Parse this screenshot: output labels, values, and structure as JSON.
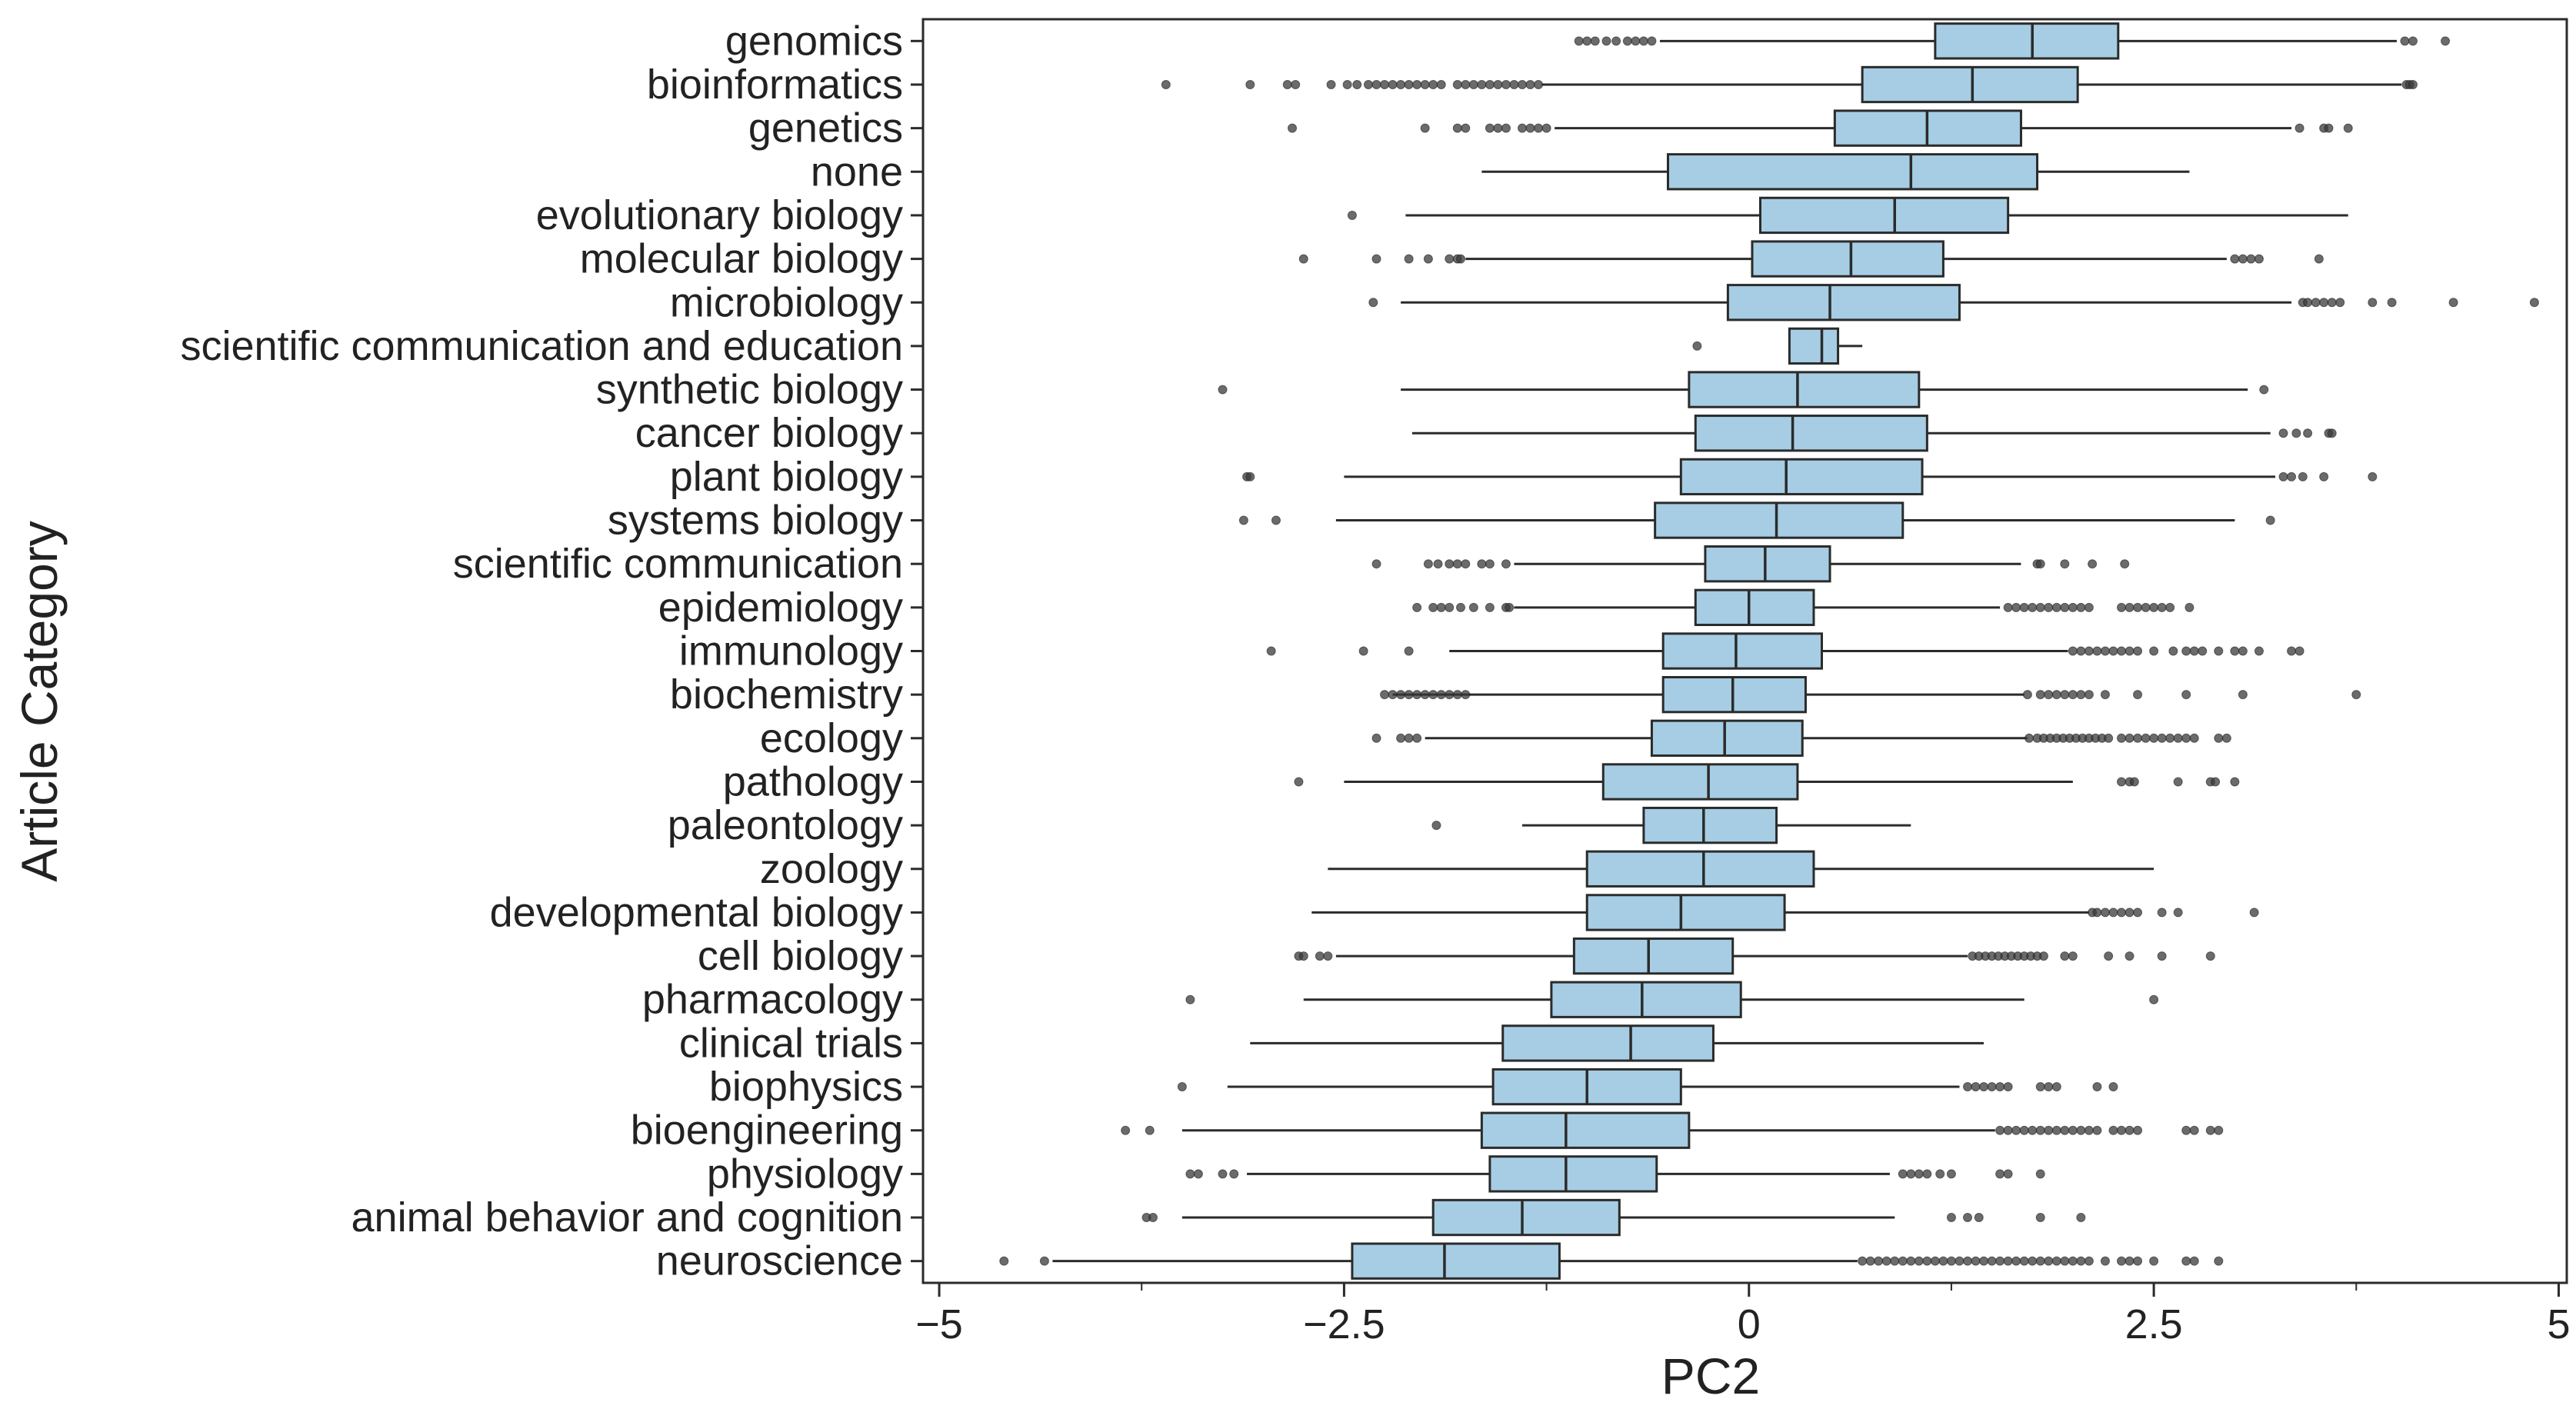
{
  "chart_data": {
    "type": "box",
    "orientation": "horizontal",
    "xlabel": "PC2",
    "ylabel": "Article Category",
    "xlim": [
      -5.1,
      5.05
    ],
    "x_ticks": [
      -5,
      -2.5,
      0,
      2.5,
      5
    ],
    "x_tick_labels": [
      "−5",
      "−2.5",
      "0",
      "2.5",
      "5"
    ],
    "box_color": "#a6cde3",
    "line_color": "#2b2b2b",
    "flier_color": "#3a3a3a",
    "categories": [
      {
        "name": "genomics",
        "whisker_low": -0.55,
        "q1": 1.15,
        "median": 1.75,
        "q3": 2.28,
        "whisker_high": 4.0,
        "outliers": [
          -1.05,
          -1.0,
          -0.95,
          -0.88,
          -0.82,
          -0.75,
          -0.7,
          -0.65,
          -0.6,
          4.05,
          4.1,
          4.3
        ]
      },
      {
        "name": "bioinformatics",
        "whisker_low": -1.28,
        "q1": 0.7,
        "median": 1.38,
        "q3": 2.03,
        "whisker_high": 4.03,
        "outliers": [
          -3.6,
          -3.08,
          -2.85,
          -2.8,
          -2.58,
          -2.48,
          -2.42,
          -2.35,
          -2.3,
          -2.25,
          -2.2,
          -2.15,
          -2.1,
          -2.05,
          -2.0,
          -1.95,
          -1.9,
          -1.8,
          -1.75,
          -1.7,
          -1.65,
          -1.6,
          -1.55,
          -1.5,
          -1.45,
          -1.4,
          -1.35,
          -1.3,
          4.06,
          4.08,
          4.1
        ]
      },
      {
        "name": "genetics",
        "whisker_low": -1.2,
        "q1": 0.53,
        "median": 1.1,
        "q3": 1.68,
        "whisker_high": 3.35,
        "outliers": [
          -2.82,
          -2.0,
          -1.8,
          -1.75,
          -1.6,
          -1.55,
          -1.5,
          -1.4,
          -1.35,
          -1.3,
          -1.25,
          3.4,
          3.55,
          3.58,
          3.7
        ]
      },
      {
        "name": "none",
        "whisker_low": -1.65,
        "q1": -0.5,
        "median": 1.0,
        "q3": 1.78,
        "whisker_high": 2.72,
        "outliers": []
      },
      {
        "name": "evolutionary biology",
        "whisker_low": -2.12,
        "q1": 0.07,
        "median": 0.9,
        "q3": 1.6,
        "whisker_high": 3.7,
        "outliers": [
          -2.45
        ]
      },
      {
        "name": "molecular biology",
        "whisker_low": -1.75,
        "q1": 0.02,
        "median": 0.63,
        "q3": 1.2,
        "whisker_high": 2.95,
        "outliers": [
          -2.75,
          -2.3,
          -2.1,
          -1.98,
          -1.85,
          -1.8,
          -1.78,
          3.0,
          3.05,
          3.1,
          3.15,
          3.52
        ]
      },
      {
        "name": "microbiology",
        "whisker_low": -2.15,
        "q1": -0.13,
        "median": 0.5,
        "q3": 1.3,
        "whisker_high": 3.35,
        "outliers": [
          -2.32,
          3.42,
          3.45,
          3.5,
          3.55,
          3.6,
          3.65,
          3.85,
          3.97,
          4.35,
          4.85
        ]
      },
      {
        "name": "scientific communication and education",
        "whisker_low": 0.25,
        "q1": 0.25,
        "median": 0.45,
        "q3": 0.55,
        "whisker_high": 0.7,
        "outliers": [
          -0.32
        ]
      },
      {
        "name": "synthetic biology",
        "whisker_low": -2.15,
        "q1": -0.37,
        "median": 0.3,
        "q3": 1.05,
        "whisker_high": 3.08,
        "outliers": [
          -3.25,
          3.18
        ]
      },
      {
        "name": "cancer biology",
        "whisker_low": -2.08,
        "q1": -0.33,
        "median": 0.27,
        "q3": 1.1,
        "whisker_high": 3.22,
        "outliers": [
          3.3,
          3.38,
          3.45,
          3.58,
          3.6
        ]
      },
      {
        "name": "plant biology",
        "whisker_low": -2.5,
        "q1": -0.42,
        "median": 0.23,
        "q3": 1.07,
        "whisker_high": 3.25,
        "outliers": [
          -3.1,
          -3.08,
          3.3,
          3.35,
          3.42,
          3.55,
          3.85
        ]
      },
      {
        "name": "systems biology",
        "whisker_low": -2.55,
        "q1": -0.58,
        "median": 0.17,
        "q3": 0.95,
        "whisker_high": 3.0,
        "outliers": [
          -3.12,
          -2.92,
          3.22
        ]
      },
      {
        "name": "scientific communication",
        "whisker_low": -1.45,
        "q1": -0.27,
        "median": 0.1,
        "q3": 0.5,
        "whisker_high": 1.68,
        "outliers": [
          -2.3,
          -1.98,
          -1.92,
          -1.85,
          -1.8,
          -1.75,
          -1.65,
          -1.6,
          -1.5,
          1.78,
          1.8,
          1.95,
          2.12,
          2.32
        ]
      },
      {
        "name": "epidemiology",
        "whisker_low": -1.45,
        "q1": -0.33,
        "median": 0.0,
        "q3": 0.4,
        "whisker_high": 1.55,
        "outliers": [
          -2.05,
          -1.95,
          -1.9,
          -1.85,
          -1.78,
          -1.7,
          -1.6,
          -1.5,
          -1.48,
          1.6,
          1.65,
          1.7,
          1.75,
          1.8,
          1.85,
          1.9,
          1.95,
          2.0,
          2.05,
          2.1,
          2.3,
          2.35,
          2.4,
          2.45,
          2.5,
          2.55,
          2.6,
          2.72
        ]
      },
      {
        "name": "immunology",
        "whisker_low": -1.85,
        "q1": -0.53,
        "median": -0.08,
        "q3": 0.45,
        "whisker_high": 1.97,
        "outliers": [
          -2.95,
          -2.38,
          -2.1,
          2.0,
          2.05,
          2.1,
          2.15,
          2.2,
          2.25,
          2.3,
          2.35,
          2.4,
          2.5,
          2.62,
          2.7,
          2.75,
          2.8,
          2.9,
          3.0,
          3.05,
          3.15,
          3.35,
          3.4
        ]
      },
      {
        "name": "biochemistry",
        "whisker_low": -2.2,
        "q1": -0.53,
        "median": -0.1,
        "q3": 0.35,
        "whisker_high": 1.7,
        "outliers": [
          -2.25,
          -2.2,
          -2.15,
          -2.1,
          -2.05,
          -2.0,
          -1.95,
          -1.9,
          -1.85,
          -1.8,
          -1.75,
          1.72,
          1.8,
          1.85,
          1.9,
          1.95,
          2.0,
          2.05,
          2.1,
          2.2,
          2.4,
          2.7,
          3.05,
          3.75
        ]
      },
      {
        "name": "ecology",
        "whisker_low": -2.0,
        "q1": -0.6,
        "median": -0.15,
        "q3": 0.33,
        "whisker_high": 1.72,
        "outliers": [
          -2.3,
          -2.15,
          -2.1,
          -2.05,
          1.73,
          1.78,
          1.82,
          1.86,
          1.9,
          1.94,
          1.98,
          2.02,
          2.06,
          2.1,
          2.14,
          2.18,
          2.22,
          2.3,
          2.35,
          2.4,
          2.45,
          2.5,
          2.55,
          2.6,
          2.65,
          2.7,
          2.75,
          2.9,
          2.95
        ]
      },
      {
        "name": "pathology",
        "whisker_low": -2.5,
        "q1": -0.9,
        "median": -0.25,
        "q3": 0.3,
        "whisker_high": 2.0,
        "outliers": [
          -2.78,
          2.3,
          2.35,
          2.38,
          2.65,
          2.85,
          2.88,
          3.0
        ]
      },
      {
        "name": "paleontology",
        "whisker_low": -1.4,
        "q1": -0.65,
        "median": -0.28,
        "q3": 0.17,
        "whisker_high": 1.0,
        "outliers": [
          -1.93
        ]
      },
      {
        "name": "zoology",
        "whisker_low": -2.6,
        "q1": -1.0,
        "median": -0.28,
        "q3": 0.4,
        "whisker_high": 2.5,
        "outliers": []
      },
      {
        "name": "developmental biology",
        "whisker_low": -2.7,
        "q1": -1.0,
        "median": -0.42,
        "q3": 0.22,
        "whisker_high": 2.1,
        "outliers": [
          2.12,
          2.15,
          2.2,
          2.25,
          2.3,
          2.35,
          2.4,
          2.55,
          2.65,
          3.12
        ]
      },
      {
        "name": "cell biology",
        "whisker_low": -2.55,
        "q1": -1.08,
        "median": -0.62,
        "q3": -0.1,
        "whisker_high": 1.35,
        "outliers": [
          -2.78,
          -2.75,
          -2.65,
          -2.6,
          1.38,
          1.42,
          1.46,
          1.5,
          1.54,
          1.58,
          1.62,
          1.66,
          1.7,
          1.74,
          1.78,
          1.82,
          1.95,
          2.0,
          2.22,
          2.35,
          2.55,
          2.85
        ]
      },
      {
        "name": "pharmacology",
        "whisker_low": -2.75,
        "q1": -1.22,
        "median": -0.66,
        "q3": -0.05,
        "whisker_high": 1.7,
        "outliers": [
          -3.45,
          2.5
        ]
      },
      {
        "name": "clinical trials",
        "whisker_low": -3.08,
        "q1": -1.52,
        "median": -0.73,
        "q3": -0.22,
        "whisker_high": 1.45,
        "outliers": []
      },
      {
        "name": "biophysics",
        "whisker_low": -3.22,
        "q1": -1.58,
        "median": -1.0,
        "q3": -0.42,
        "whisker_high": 1.3,
        "outliers": [
          -3.5,
          1.35,
          1.4,
          1.45,
          1.5,
          1.55,
          1.6,
          1.8,
          1.85,
          1.9,
          2.15,
          2.25
        ]
      },
      {
        "name": "bioengineering",
        "whisker_low": -3.5,
        "q1": -1.65,
        "median": -1.13,
        "q3": -0.37,
        "whisker_high": 1.52,
        "outliers": [
          -3.85,
          -3.7,
          1.55,
          1.6,
          1.65,
          1.7,
          1.75,
          1.8,
          1.85,
          1.9,
          1.95,
          2.0,
          2.05,
          2.1,
          2.15,
          2.25,
          2.3,
          2.35,
          2.4,
          2.7,
          2.75,
          2.85,
          2.9
        ]
      },
      {
        "name": "physiology",
        "whisker_low": -3.1,
        "q1": -1.6,
        "median": -1.13,
        "q3": -0.57,
        "whisker_high": 0.87,
        "outliers": [
          -3.45,
          -3.4,
          -3.25,
          -3.18,
          0.95,
          1.0,
          1.05,
          1.1,
          1.18,
          1.25,
          1.55,
          1.6,
          1.8
        ]
      },
      {
        "name": "animal behavior and cognition",
        "whisker_low": -3.5,
        "q1": -1.95,
        "median": -1.4,
        "q3": -0.8,
        "whisker_high": 0.9,
        "outliers": [
          -3.72,
          -3.68,
          1.25,
          1.35,
          1.42,
          1.8,
          2.05
        ]
      },
      {
        "name": "neuroscience",
        "whisker_low": -4.3,
        "q1": -2.45,
        "median": -1.88,
        "q3": -1.17,
        "whisker_high": 0.67,
        "outliers": [
          -4.6,
          -4.35,
          0.7,
          0.75,
          0.8,
          0.85,
          0.9,
          0.95,
          1.0,
          1.05,
          1.1,
          1.15,
          1.2,
          1.25,
          1.3,
          1.35,
          1.4,
          1.45,
          1.5,
          1.55,
          1.6,
          1.65,
          1.7,
          1.75,
          1.8,
          1.85,
          1.9,
          1.95,
          2.0,
          2.05,
          2.1,
          2.2,
          2.3,
          2.35,
          2.4,
          2.5,
          2.7,
          2.75,
          2.9
        ]
      }
    ]
  }
}
